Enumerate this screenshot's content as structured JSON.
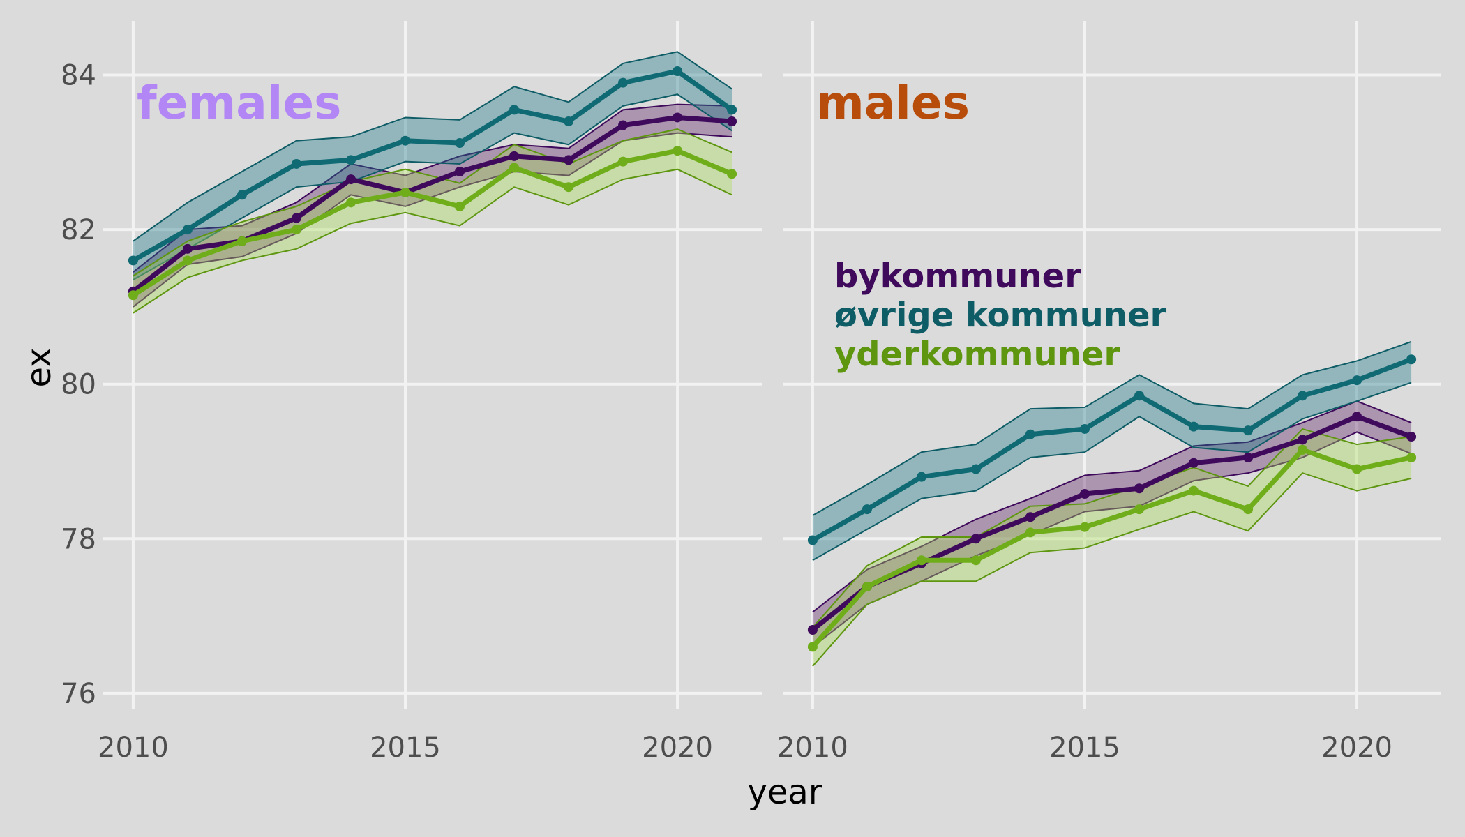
{
  "chart_data": {
    "type": "line",
    "xlabel": "year",
    "ylabel": "ex",
    "xlim": [
      2009.45,
      2021.55
    ],
    "ylim": [
      75.8,
      84.7
    ],
    "x_ticks": [
      2010,
      2015,
      2020
    ],
    "y_ticks": [
      76,
      78,
      80,
      82,
      84
    ],
    "x": [
      2010,
      2011,
      2012,
      2013,
      2014,
      2015,
      2016,
      2017,
      2018,
      2019,
      2020,
      2021
    ],
    "grid": true,
    "legend_position": "inside-right-panel",
    "legend": [
      {
        "label": "bykommuner",
        "color": "#3f0a5c"
      },
      {
        "label": "øvrige kommuner",
        "color": "#0e5c66"
      },
      {
        "label": "yderkommuner",
        "color": "#5e9610"
      }
    ],
    "panels": [
      {
        "title": "females",
        "title_color": "#b386f5",
        "series": [
          {
            "name": "bykommuner",
            "line_color": "#3f0a5c",
            "fill_color": "#5c2266",
            "values": [
              81.2,
              81.75,
              81.85,
              82.15,
              82.65,
              82.48,
              82.75,
              82.95,
              82.9,
              83.35,
              83.45,
              83.4
            ],
            "upper": [
              81.45,
              82.0,
              82.05,
              82.35,
              82.85,
              82.7,
              82.95,
              83.1,
              83.05,
              83.55,
              83.62,
              83.6
            ],
            "lower": [
              81.0,
              81.55,
              81.65,
              81.95,
              82.45,
              82.3,
              82.55,
              82.75,
              82.7,
              83.15,
              83.25,
              83.2
            ]
          },
          {
            "name": "øvrige kommuner",
            "line_color": "#0e5c66",
            "fill_color": "#1a7a87",
            "values": [
              81.6,
              82.0,
              82.45,
              82.85,
              82.9,
              83.15,
              83.12,
              83.55,
              83.4,
              83.9,
              84.05,
              83.55
            ],
            "upper": [
              81.85,
              82.35,
              82.75,
              83.15,
              83.2,
              83.45,
              83.42,
              83.85,
              83.65,
              84.15,
              84.3,
              83.82
            ],
            "lower": [
              81.35,
              81.75,
              82.15,
              82.55,
              82.62,
              82.88,
              82.85,
              83.25,
              83.1,
              83.6,
              83.75,
              83.28
            ]
          },
          {
            "name": "yderkommuner",
            "line_color": "#5e9610",
            "fill_color": "#a9dc5a",
            "values": [
              81.15,
              81.6,
              81.85,
              82.0,
              82.35,
              82.48,
              82.3,
              82.8,
              82.55,
              82.88,
              83.02,
              82.72
            ],
            "upper": [
              81.4,
              81.85,
              82.1,
              82.3,
              82.62,
              82.78,
              82.6,
              83.1,
              82.85,
              83.15,
              83.3,
              83.0
            ],
            "lower": [
              80.92,
              81.38,
              81.6,
              81.75,
              82.08,
              82.22,
              82.05,
              82.55,
              82.32,
              82.65,
              82.78,
              82.45
            ]
          }
        ]
      },
      {
        "title": "males",
        "title_color": "#b84c0a",
        "series": [
          {
            "name": "bykommuner",
            "line_color": "#3f0a5c",
            "fill_color": "#5c2266",
            "values": [
              76.82,
              77.38,
              77.68,
              78.0,
              78.28,
              78.58,
              78.65,
              78.98,
              79.05,
              79.28,
              79.58,
              79.32
            ],
            "upper": [
              77.05,
              77.6,
              77.9,
              78.25,
              78.52,
              78.82,
              78.88,
              79.2,
              79.25,
              79.5,
              79.78,
              79.5
            ],
            "lower": [
              76.6,
              77.15,
              77.45,
              77.78,
              78.05,
              78.35,
              78.42,
              78.75,
              78.85,
              79.05,
              79.38,
              79.1
            ]
          },
          {
            "name": "øvrige kommuner",
            "line_color": "#0e5c66",
            "fill_color": "#1a7a87",
            "values": [
              77.98,
              78.38,
              78.8,
              78.9,
              79.35,
              79.42,
              79.85,
              79.45,
              79.4,
              79.85,
              80.05,
              80.32
            ],
            "upper": [
              78.3,
              78.7,
              79.12,
              79.22,
              79.68,
              79.7,
              80.12,
              79.75,
              79.68,
              80.12,
              80.3,
              80.55
            ],
            "lower": [
              77.72,
              78.12,
              78.52,
              78.62,
              79.05,
              79.12,
              79.58,
              79.18,
              79.12,
              79.55,
              79.78,
              80.02
            ]
          },
          {
            "name": "yderkommuner",
            "line_color": "#5e9610",
            "fill_color": "#a9dc5a",
            "values": [
              76.6,
              77.38,
              77.72,
              77.72,
              78.08,
              78.15,
              78.38,
              78.62,
              78.38,
              79.15,
              78.9,
              79.05
            ],
            "upper": [
              76.85,
              77.65,
              78.02,
              78.02,
              78.42,
              78.45,
              78.68,
              78.92,
              78.68,
              79.42,
              79.22,
              79.32
            ],
            "lower": [
              76.35,
              77.15,
              77.45,
              77.45,
              77.82,
              77.88,
              78.12,
              78.35,
              78.1,
              78.85,
              78.62,
              78.78
            ]
          }
        ]
      }
    ]
  }
}
